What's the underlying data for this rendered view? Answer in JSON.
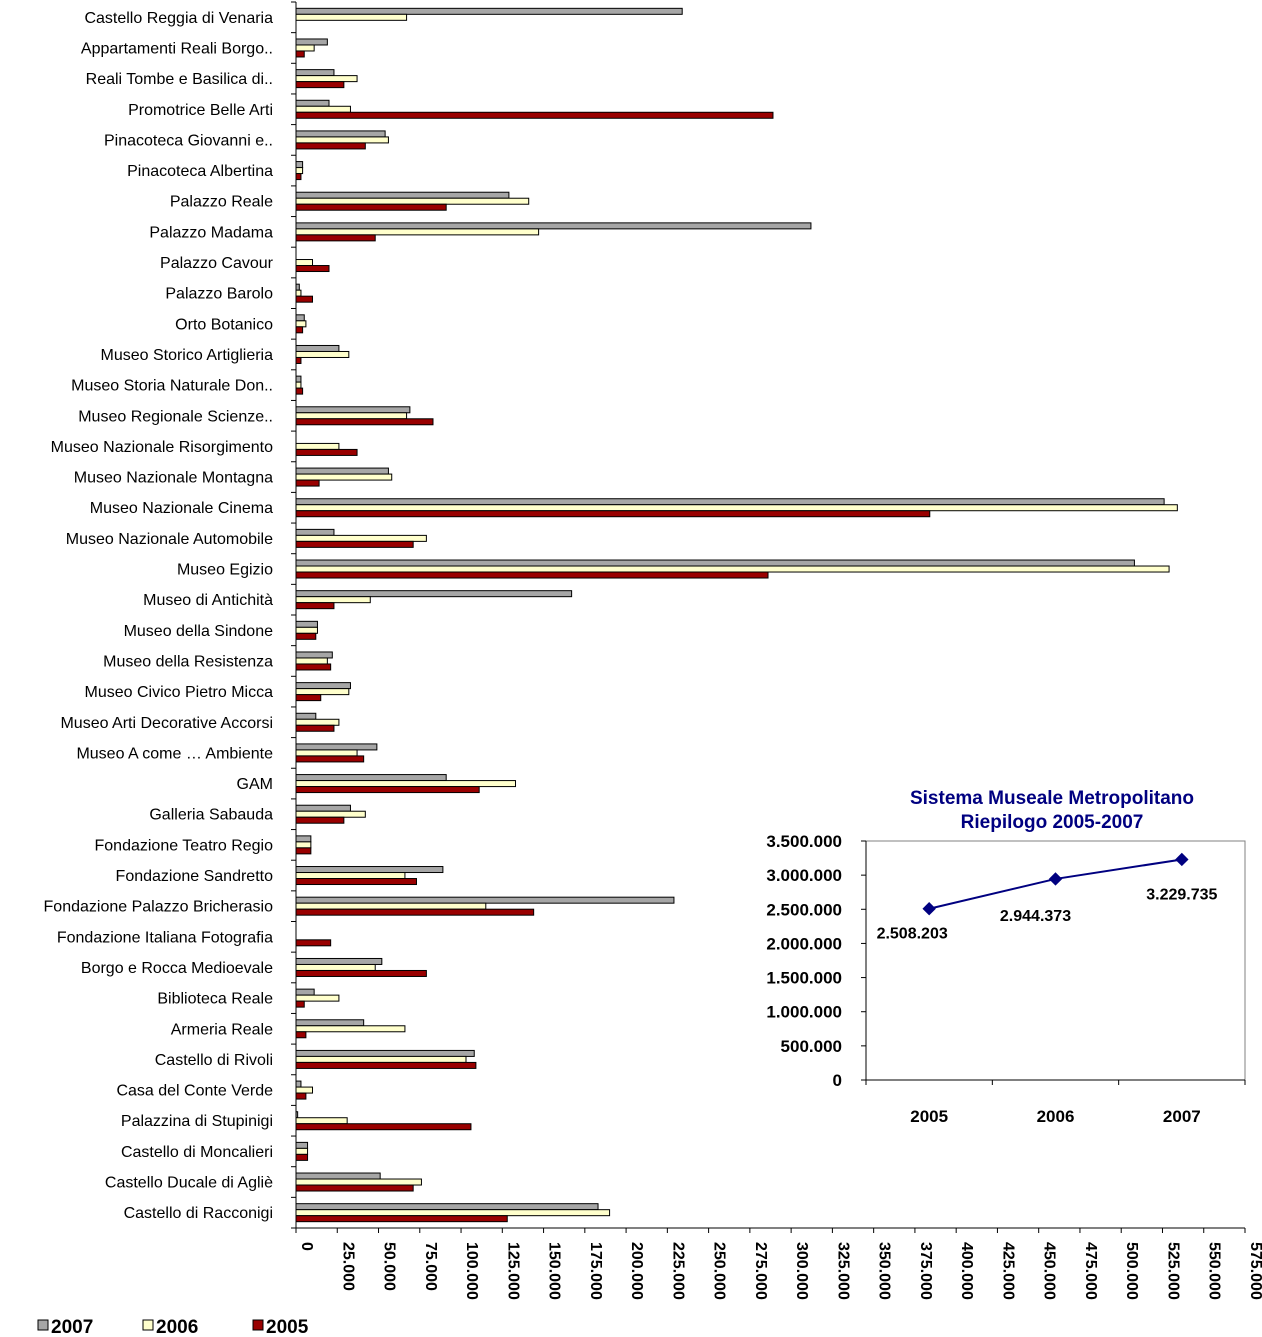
{
  "chart_data": [
    {
      "type": "bar",
      "orientation": "horizontal",
      "categories": [
        "Castello Reggia di Venaria",
        "Appartamenti Reali Borgo..",
        "Reali Tombe e Basilica di..",
        "Promotrice Belle Arti",
        "Pinacoteca Giovanni e..",
        "Pinacoteca Albertina",
        "Palazzo Reale",
        "Palazzo Madama",
        "Palazzo Cavour",
        "Palazzo Barolo",
        "Orto Botanico",
        "Museo Storico Artiglieria",
        "Museo Storia Naturale Don..",
        "Museo Regionale Scienze..",
        "Museo Nazionale Risorgimento",
        "Museo Nazionale Montagna",
        "Museo Nazionale Cinema",
        "Museo Nazionale Automobile",
        "Museo Egizio",
        "Museo di Antichità",
        "Museo della Sindone",
        "Museo della Resistenza",
        "Museo Civico Pietro Micca",
        "Museo Arti Decorative Accorsi",
        "Museo A come … Ambiente",
        "GAM",
        "Galleria Sabauda",
        "Fondazione Teatro Regio",
        "Fondazione Sandretto",
        "Fondazione Palazzo Bricherasio",
        "Fondazione Italiana Fotografia",
        "Borgo e Rocca Medioevale",
        "Biblioteca Reale",
        "Armeria Reale",
        "Castello di Rivoli",
        "Casa del Conte Verde",
        "Palazzina di Stupinigi",
        "Castello di Moncalieri",
        "Castello Ducale di Agliè",
        "Castello di Racconigi"
      ],
      "series": [
        {
          "name": "2007",
          "color": "#a6a6a6",
          "values": [
            234000,
            19000,
            23000,
            20000,
            54000,
            4000,
            129000,
            312000,
            0,
            2000,
            5000,
            26000,
            3000,
            69000,
            0,
            56000,
            526000,
            23000,
            508000,
            167000,
            13000,
            22000,
            33000,
            12000,
            49000,
            91000,
            33000,
            9000,
            89000,
            229000,
            0,
            52000,
            11000,
            41000,
            108000,
            3000,
            1000,
            7000,
            51000,
            183000
          ]
        },
        {
          "name": "2006",
          "color": "#ffffcc",
          "values": [
            67000,
            11000,
            37000,
            33000,
            56000,
            4000,
            141000,
            147000,
            10000,
            3000,
            6000,
            32000,
            3000,
            67000,
            26000,
            58000,
            534000,
            79000,
            529000,
            45000,
            13000,
            19000,
            32000,
            26000,
            37000,
            133000,
            42000,
            9000,
            66000,
            115000,
            0,
            48000,
            26000,
            66000,
            103000,
            10000,
            31000,
            7000,
            76000,
            190000
          ]
        },
        {
          "name": "2005",
          "color": "#990000",
          "values": [
            0,
            5000,
            29000,
            289000,
            42000,
            3000,
            91000,
            48000,
            20000,
            10000,
            4000,
            3000,
            4000,
            83000,
            37000,
            14000,
            384000,
            71000,
            286000,
            23000,
            12000,
            21000,
            15000,
            23000,
            41000,
            111000,
            29000,
            9000,
            73000,
            144000,
            21000,
            79000,
            5000,
            6000,
            109000,
            6000,
            106000,
            7000,
            71000,
            128000
          ]
        }
      ],
      "xlim": [
        0,
        575000
      ],
      "xticks": [
        "0",
        "25.000",
        "50.000",
        "75.000",
        "100.000",
        "125.000",
        "150.000",
        "175.000",
        "200.000",
        "225.000",
        "250.000",
        "275.000",
        "300.000",
        "325.000",
        "350.000",
        "375.000",
        "400.000",
        "425.000",
        "450.000",
        "475.000",
        "500.000",
        "525.000",
        "550.000",
        "575.000"
      ],
      "grid": false,
      "legend_position": "bottom-left"
    },
    {
      "type": "line",
      "title": "Sistema Museale Metropolitano\nRiepilogo 2005-2007",
      "title_lines": [
        "Sistema Museale Metropolitano",
        "Riepilogo 2005-2007"
      ],
      "title_color": "#000080",
      "categories": [
        "2005",
        "2006",
        "2007"
      ],
      "series": [
        {
          "name": "",
          "color": "#000080",
          "values": [
            2508203,
            2944373,
            3229735
          ]
        }
      ],
      "data_labels": [
        "2.508.203",
        "2.944.373",
        "3.229.735"
      ],
      "ylim": [
        0,
        3500000
      ],
      "yticks": [
        "0",
        "500.000",
        "1.000.000",
        "1.500.000",
        "2.000.000",
        "2.500.000",
        "3.000.000",
        "3.500.000"
      ],
      "grid": false
    }
  ]
}
